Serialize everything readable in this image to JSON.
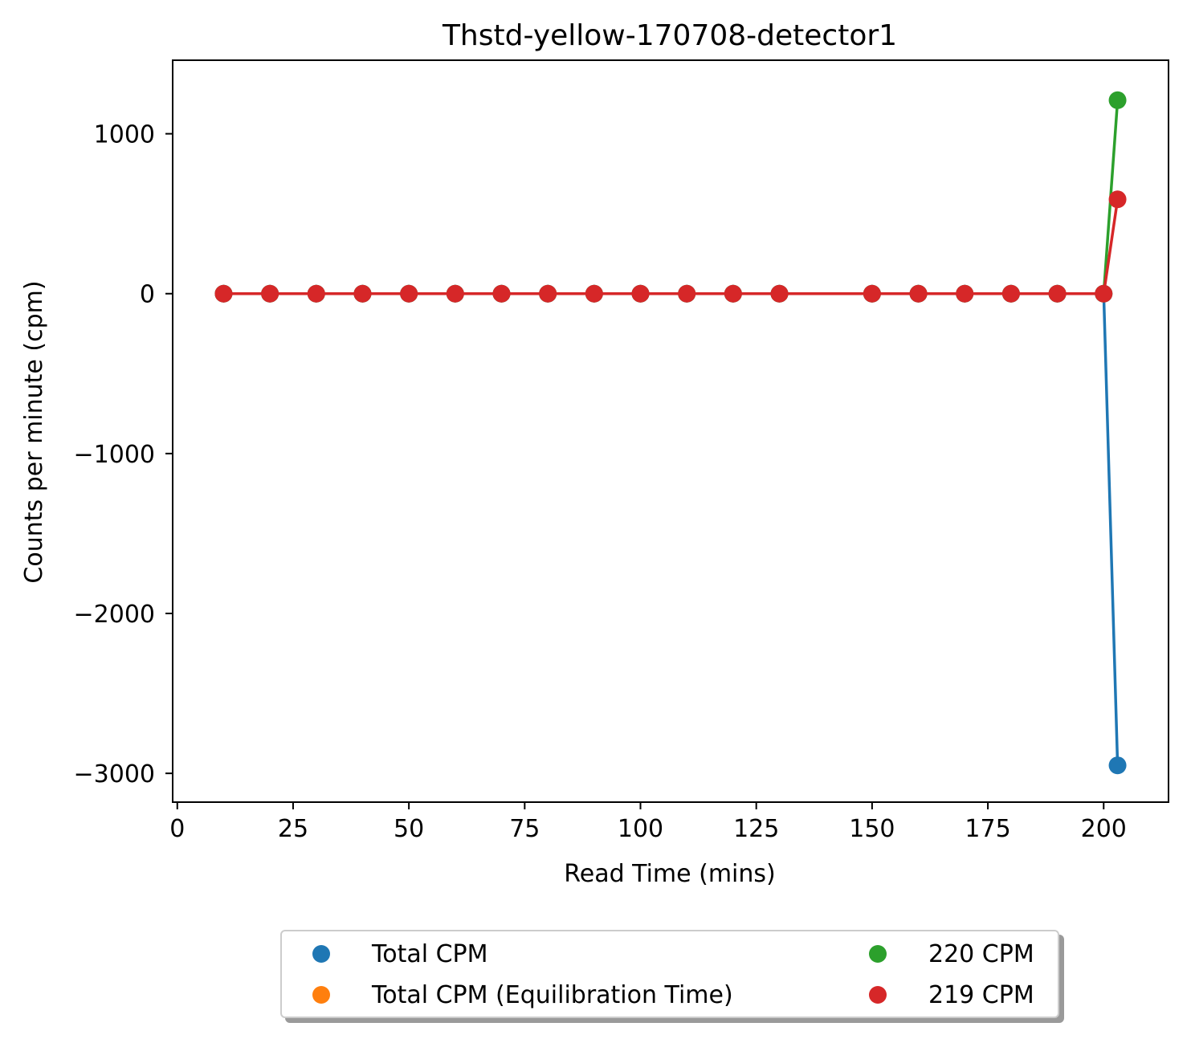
{
  "chart_data": {
    "type": "line",
    "title": "Thstd-yellow-170708-detector1",
    "xlabel": "Read Time (mins)",
    "ylabel": "Counts per minute (cpm)",
    "xlim": [
      -1,
      214
    ],
    "ylim": [
      -3180,
      1460
    ],
    "xticks": [
      0,
      25,
      50,
      75,
      100,
      125,
      150,
      175,
      200
    ],
    "yticks": [
      -3000,
      -2000,
      -1000,
      0,
      1000
    ],
    "ytick_labels": [
      "−3000",
      "−2000",
      "−1000",
      "0",
      "1000"
    ],
    "grid": false,
    "legend_position": "bottom-center",
    "series": [
      {
        "name": "Total CPM",
        "color": "#1f77b4",
        "x": [
          10,
          20,
          30,
          40,
          50,
          60,
          70,
          80,
          90,
          100,
          110,
          120,
          130,
          150,
          160,
          170,
          180,
          190,
          200,
          203
        ],
        "y": [
          0,
          0,
          0,
          0,
          0,
          0,
          0,
          0,
          0,
          0,
          0,
          0,
          0,
          0,
          0,
          0,
          0,
          0,
          0,
          -2950
        ]
      },
      {
        "name": "Total CPM (Equilibration Time)",
        "color": "#ff7f0e",
        "x": [],
        "y": []
      },
      {
        "name": "220 CPM",
        "color": "#2ca02c",
        "x": [
          10,
          20,
          30,
          40,
          50,
          60,
          70,
          80,
          90,
          100,
          110,
          120,
          130,
          150,
          160,
          170,
          180,
          190,
          200,
          203
        ],
        "y": [
          0,
          0,
          0,
          0,
          0,
          0,
          0,
          0,
          0,
          0,
          0,
          0,
          0,
          0,
          0,
          0,
          0,
          0,
          0,
          1210
        ]
      },
      {
        "name": "219 CPM",
        "color": "#d62728",
        "x": [
          10,
          20,
          30,
          40,
          50,
          60,
          70,
          80,
          90,
          100,
          110,
          120,
          130,
          150,
          160,
          170,
          180,
          190,
          200,
          203
        ],
        "y": [
          0,
          0,
          0,
          0,
          0,
          0,
          0,
          0,
          0,
          0,
          0,
          0,
          0,
          0,
          0,
          0,
          0,
          0,
          0,
          590
        ]
      }
    ]
  },
  "legend": {
    "entries": [
      {
        "label": "Total CPM",
        "color": "#1f77b4"
      },
      {
        "label": "Total CPM (Equilibration Time)",
        "color": "#ff7f0e"
      },
      {
        "label": "220 CPM",
        "color": "#2ca02c"
      },
      {
        "label": "219 CPM",
        "color": "#d62728"
      }
    ]
  }
}
